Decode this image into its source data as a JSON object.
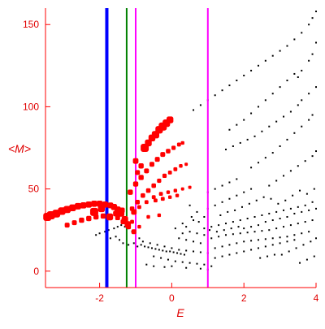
{
  "chart_data": {
    "type": "scatter",
    "title": "",
    "xlabel": "E",
    "ylabel": "<M>",
    "xlim": [
      -3.5,
      4.0
    ],
    "ylim": [
      -10,
      160
    ],
    "xticks": [
      {
        "value": -2,
        "label": "-2"
      },
      {
        "value": 0,
        "label": "0"
      },
      {
        "value": 2,
        "label": "2"
      },
      {
        "value": 4,
        "label": "4"
      }
    ],
    "yticks": [
      {
        "value": 0,
        "label": "0"
      },
      {
        "value": 50,
        "label": "50"
      },
      {
        "value": 100,
        "label": "100"
      },
      {
        "value": 150,
        "label": "150"
      }
    ],
    "grid": false,
    "colors": {
      "axis": "#ff0000",
      "text": "#e00000",
      "highlight_points": "#ff0000",
      "background_points": "#000000"
    },
    "vertical_lines": [
      {
        "x": -1.8,
        "color": "#0000ff",
        "width": "thick"
      },
      {
        "x": -1.25,
        "color": "#008000",
        "width": "thin"
      },
      {
        "x": -1.0,
        "color": "#ff00ff",
        "width": "thin"
      },
      {
        "x": 1.0,
        "color": "#ff00ff",
        "width": "thin"
      }
    ],
    "highlight_points": [
      [
        -3.45,
        33,
        1.0
      ],
      [
        -3.35,
        34,
        1.0
      ],
      [
        -3.2,
        35,
        0.95
      ],
      [
        -3.05,
        36.5,
        0.9
      ],
      [
        -2.9,
        37.5,
        0.85
      ],
      [
        -2.75,
        38.5,
        0.8
      ],
      [
        -2.6,
        39.5,
        0.75
      ],
      [
        -2.45,
        40,
        0.7
      ],
      [
        -2.3,
        40.5,
        0.7
      ],
      [
        -2.15,
        41,
        0.7
      ],
      [
        -2.0,
        41,
        0.7
      ],
      [
        -1.85,
        40.5,
        0.7
      ],
      [
        -1.7,
        40,
        0.65
      ],
      [
        -1.6,
        39,
        0.7
      ],
      [
        -1.5,
        37.5,
        0.7
      ],
      [
        -1.4,
        35,
        0.7
      ],
      [
        -1.3,
        31.5,
        0.75
      ],
      [
        -1.22,
        28.5,
        0.7
      ],
      [
        -2.15,
        36,
        1.0
      ],
      [
        -1.95,
        38,
        0.8
      ],
      [
        -1.72,
        33,
        0.8
      ],
      [
        -1.55,
        35,
        0.6
      ],
      [
        -1.38,
        37,
        0.6
      ],
      [
        -1.05,
        36,
        0.6
      ],
      [
        -2.9,
        28,
        0.5
      ],
      [
        -2.7,
        29.5,
        0.5
      ],
      [
        -2.5,
        31,
        0.55
      ],
      [
        -2.3,
        32,
        0.55
      ],
      [
        -2.1,
        33,
        0.55
      ],
      [
        -1.9,
        33.5,
        0.55
      ],
      [
        -1.7,
        33.5,
        0.5
      ],
      [
        -1.5,
        32.5,
        0.5
      ],
      [
        -1.35,
        30,
        0.5
      ],
      [
        -1.2,
        27,
        0.5
      ],
      [
        -1.05,
        24,
        0.5
      ],
      [
        -1.0,
        67,
        0.6
      ],
      [
        -0.95,
        60,
        0.5
      ],
      [
        -0.85,
        64,
        0.55
      ],
      [
        -0.75,
        75,
        1.0
      ],
      [
        -0.65,
        78,
        0.8
      ],
      [
        -0.55,
        81,
        0.8
      ],
      [
        -0.45,
        83,
        0.9
      ],
      [
        -0.35,
        86,
        0.9
      ],
      [
        -0.25,
        88,
        1.0
      ],
      [
        -0.15,
        90,
        0.9
      ],
      [
        -0.05,
        92,
        0.8
      ],
      [
        -1.15,
        48,
        0.55
      ],
      [
        -1.0,
        53,
        0.55
      ],
      [
        -0.85,
        57,
        0.55
      ],
      [
        -0.7,
        61,
        0.5
      ],
      [
        -0.55,
        65,
        0.5
      ],
      [
        -0.4,
        68,
        0.5
      ],
      [
        -0.25,
        71,
        0.5
      ],
      [
        -0.1,
        73,
        0.45
      ],
      [
        0.05,
        75,
        0.4
      ],
      [
        0.2,
        77,
        0.35
      ],
      [
        0.3,
        78,
        0.3
      ],
      [
        -1.1,
        38,
        0.45
      ],
      [
        -0.95,
        42,
        0.45
      ],
      [
        -0.8,
        46,
        0.45
      ],
      [
        -0.65,
        49,
        0.45
      ],
      [
        -0.5,
        52,
        0.45
      ],
      [
        -0.35,
        55,
        0.4
      ],
      [
        -0.2,
        58,
        0.4
      ],
      [
        -0.05,
        60,
        0.35
      ],
      [
        0.1,
        62,
        0.35
      ],
      [
        0.25,
        64,
        0.3
      ],
      [
        0.4,
        65,
        0.25
      ],
      [
        -0.9,
        39,
        0.35
      ],
      [
        -0.7,
        42,
        0.35
      ],
      [
        -0.5,
        45,
        0.35
      ],
      [
        -0.3,
        47,
        0.35
      ],
      [
        -0.1,
        48,
        0.3
      ],
      [
        0.1,
        49,
        0.3
      ],
      [
        0.3,
        50,
        0.25
      ],
      [
        0.5,
        51,
        0.25
      ],
      [
        -0.45,
        43,
        0.35
      ],
      [
        -0.25,
        44,
        0.35
      ],
      [
        -0.05,
        45,
        0.3
      ],
      [
        0.15,
        46,
        0.3
      ],
      [
        -0.65,
        33,
        0.3
      ],
      [
        -0.35,
        34,
        0.3
      ],
      [
        -1.1,
        30,
        0.35
      ],
      [
        -0.9,
        27,
        0.3
      ]
    ],
    "background_points": [
      [
        -2.1,
        22
      ],
      [
        -2.0,
        23
      ],
      [
        -1.85,
        24
      ],
      [
        -1.75,
        25
      ],
      [
        -1.6,
        26
      ],
      [
        -1.5,
        27
      ],
      [
        -1.4,
        28
      ],
      [
        -1.3,
        27
      ],
      [
        -1.2,
        26
      ],
      [
        -1.1,
        24
      ],
      [
        -1.0,
        22
      ],
      [
        -0.9,
        20
      ],
      [
        -0.8,
        18
      ],
      [
        -1.7,
        20
      ],
      [
        -1.55,
        21
      ],
      [
        -1.45,
        19
      ],
      [
        -1.35,
        17
      ],
      [
        -1.2,
        16
      ],
      [
        -1.05,
        17
      ],
      [
        -0.95,
        15
      ],
      [
        -0.85,
        16
      ],
      [
        -0.75,
        15
      ],
      [
        -0.65,
        14.5
      ],
      [
        -0.55,
        14
      ],
      [
        -0.45,
        13.5
      ],
      [
        -0.35,
        13
      ],
      [
        -0.25,
        12.5
      ],
      [
        -0.15,
        12
      ],
      [
        -0.05,
        12
      ],
      [
        0.05,
        11.5
      ],
      [
        0.15,
        11
      ],
      [
        0.25,
        10.5
      ],
      [
        0.35,
        10
      ],
      [
        -0.6,
        17
      ],
      [
        -0.4,
        16
      ],
      [
        -0.2,
        15
      ],
      [
        0.0,
        14
      ],
      [
        0.2,
        13
      ],
      [
        0.4,
        12.5
      ],
      [
        0.6,
        12
      ],
      [
        0.8,
        11.5
      ],
      [
        1.0,
        11
      ],
      [
        -0.5,
        9
      ],
      [
        -0.3,
        8
      ],
      [
        -0.1,
        7
      ],
      [
        0.1,
        6
      ],
      [
        0.3,
        5.5
      ],
      [
        0.5,
        5
      ],
      [
        0.7,
        4.5
      ],
      [
        0.9,
        4
      ],
      [
        -0.7,
        4
      ],
      [
        -0.5,
        3
      ],
      [
        -0.2,
        2.5
      ],
      [
        0.0,
        3
      ],
      [
        0.4,
        2
      ],
      [
        0.8,
        1.5
      ],
      [
        1.0,
        1
      ],
      [
        1.1,
        3
      ],
      [
        0.6,
        98
      ],
      [
        0.8,
        101
      ],
      [
        1.0,
        104
      ],
      [
        1.2,
        107
      ],
      [
        1.4,
        110
      ],
      [
        1.6,
        113
      ],
      [
        1.8,
        116
      ],
      [
        2.0,
        119
      ],
      [
        2.2,
        122
      ],
      [
        2.4,
        125
      ],
      [
        2.6,
        128
      ],
      [
        2.8,
        131
      ],
      [
        3.0,
        134
      ],
      [
        3.2,
        137
      ],
      [
        3.4,
        141
      ],
      [
        3.6,
        145
      ],
      [
        3.8,
        150
      ],
      [
        3.9,
        154
      ],
      [
        4.0,
        158
      ],
      [
        1.6,
        86
      ],
      [
        1.8,
        89
      ],
      [
        2.0,
        92
      ],
      [
        2.2,
        96
      ],
      [
        2.4,
        100
      ],
      [
        2.6,
        104
      ],
      [
        2.8,
        108
      ],
      [
        3.0,
        112
      ],
      [
        3.2,
        116
      ],
      [
        3.4,
        120
      ],
      [
        3.5,
        118
      ],
      [
        3.6,
        122
      ],
      [
        3.8,
        128
      ],
      [
        3.9,
        132
      ],
      [
        4.0,
        139
      ],
      [
        1.5,
        74
      ],
      [
        1.7,
        76
      ],
      [
        1.9,
        78
      ],
      [
        2.1,
        80
      ],
      [
        2.3,
        82
      ],
      [
        2.5,
        85
      ],
      [
        2.7,
        88
      ],
      [
        2.9,
        91
      ],
      [
        3.1,
        94
      ],
      [
        3.3,
        97
      ],
      [
        3.5,
        101
      ],
      [
        3.6,
        104
      ],
      [
        3.8,
        108
      ],
      [
        4.0,
        112
      ],
      [
        2.2,
        63
      ],
      [
        2.4,
        66
      ],
      [
        2.6,
        69
      ],
      [
        2.8,
        72
      ],
      [
        3.0,
        76
      ],
      [
        3.2,
        80
      ],
      [
        3.4,
        84
      ],
      [
        3.6,
        88
      ],
      [
        3.8,
        92
      ],
      [
        3.9,
        95
      ],
      [
        2.7,
        52
      ],
      [
        2.9,
        55
      ],
      [
        3.1,
        58
      ],
      [
        3.3,
        61
      ],
      [
        3.5,
        64
      ],
      [
        3.7,
        67
      ],
      [
        3.9,
        70
      ],
      [
        4.0,
        73
      ],
      [
        1.0,
        48
      ],
      [
        1.2,
        50
      ],
      [
        1.4,
        52
      ],
      [
        1.6,
        54
      ],
      [
        1.8,
        56
      ],
      [
        1.0,
        38
      ],
      [
        1.2,
        40
      ],
      [
        1.4,
        42
      ],
      [
        1.6,
        44
      ],
      [
        1.8,
        46
      ],
      [
        2.0,
        48
      ],
      [
        2.2,
        50
      ],
      [
        0.5,
        40
      ],
      [
        0.7,
        36
      ],
      [
        0.9,
        33
      ],
      [
        0.6,
        31
      ],
      [
        0.4,
        27
      ],
      [
        1.1,
        27
      ],
      [
        1.3,
        28
      ],
      [
        1.5,
        29
      ],
      [
        1.7,
        30
      ],
      [
        1.9,
        31
      ],
      [
        2.1,
        32
      ],
      [
        2.3,
        33
      ],
      [
        2.5,
        34
      ],
      [
        2.7,
        35
      ],
      [
        2.9,
        36
      ],
      [
        3.1,
        37
      ],
      [
        3.3,
        38
      ],
      [
        3.5,
        39
      ],
      [
        3.7,
        40
      ],
      [
        3.9,
        42
      ],
      [
        1.1,
        20
      ],
      [
        1.3,
        21
      ],
      [
        1.5,
        22
      ],
      [
        1.7,
        22.5
      ],
      [
        1.9,
        23
      ],
      [
        2.1,
        23.5
      ],
      [
        2.3,
        24
      ],
      [
        2.5,
        24.5
      ],
      [
        2.7,
        25
      ],
      [
        2.9,
        26
      ],
      [
        3.1,
        27
      ],
      [
        3.3,
        28
      ],
      [
        3.5,
        29
      ],
      [
        3.7,
        30
      ],
      [
        3.9,
        31
      ],
      [
        1.2,
        14
      ],
      [
        1.4,
        15
      ],
      [
        1.6,
        16
      ],
      [
        1.8,
        17
      ],
      [
        2.0,
        18
      ],
      [
        2.2,
        18.5
      ],
      [
        2.4,
        19
      ],
      [
        2.6,
        19.5
      ],
      [
        2.8,
        20
      ],
      [
        3.0,
        20.5
      ],
      [
        3.2,
        21
      ],
      [
        3.4,
        22
      ],
      [
        3.6,
        23
      ],
      [
        3.8,
        24
      ],
      [
        1.2,
        8
      ],
      [
        1.4,
        9
      ],
      [
        1.6,
        10
      ],
      [
        1.8,
        11
      ],
      [
        2.0,
        12
      ],
      [
        2.2,
        13
      ],
      [
        2.4,
        14
      ],
      [
        2.6,
        15
      ],
      [
        2.8,
        16
      ],
      [
        3.0,
        17
      ],
      [
        3.2,
        18
      ],
      [
        3.4,
        19
      ],
      [
        0.2,
        20
      ],
      [
        0.4,
        19
      ],
      [
        0.6,
        18
      ],
      [
        0.8,
        17
      ],
      [
        0.3,
        23
      ],
      [
        0.5,
        24
      ],
      [
        0.7,
        23
      ],
      [
        0.9,
        22
      ],
      [
        0.1,
        26
      ],
      [
        0.3,
        29
      ],
      [
        0.55,
        33
      ],
      [
        0.75,
        30
      ],
      [
        1.35,
        34
      ],
      [
        1.55,
        36
      ],
      [
        1.75,
        37
      ],
      [
        1.95,
        39
      ],
      [
        2.15,
        41
      ],
      [
        2.35,
        43
      ],
      [
        2.55,
        45
      ],
      [
        2.75,
        44
      ],
      [
        2.95,
        41
      ],
      [
        3.15,
        43
      ],
      [
        3.35,
        46
      ],
      [
        3.55,
        49
      ],
      [
        3.75,
        47
      ],
      [
        3.95,
        50
      ],
      [
        2.0,
        26
      ],
      [
        2.2,
        27
      ],
      [
        2.4,
        28
      ],
      [
        2.6,
        30
      ],
      [
        2.8,
        31
      ],
      [
        3.0,
        32
      ],
      [
        3.2,
        33
      ],
      [
        3.4,
        35
      ],
      [
        3.6,
        36
      ],
      [
        3.8,
        37
      ],
      [
        4.0,
        38
      ],
      [
        0.9,
        26
      ],
      [
        1.05,
        25
      ],
      [
        1.25,
        24
      ],
      [
        1.45,
        25
      ],
      [
        1.65,
        26
      ],
      [
        1.85,
        27
      ],
      [
        3.05,
        10
      ],
      [
        3.25,
        12
      ],
      [
        3.45,
        14
      ],
      [
        3.65,
        16
      ],
      [
        3.85,
        18
      ],
      [
        4.0,
        20
      ],
      [
        2.45,
        8
      ],
      [
        2.65,
        9
      ],
      [
        2.85,
        10
      ],
      [
        3.55,
        5
      ],
      [
        3.75,
        7
      ],
      [
        3.95,
        9
      ]
    ]
  }
}
